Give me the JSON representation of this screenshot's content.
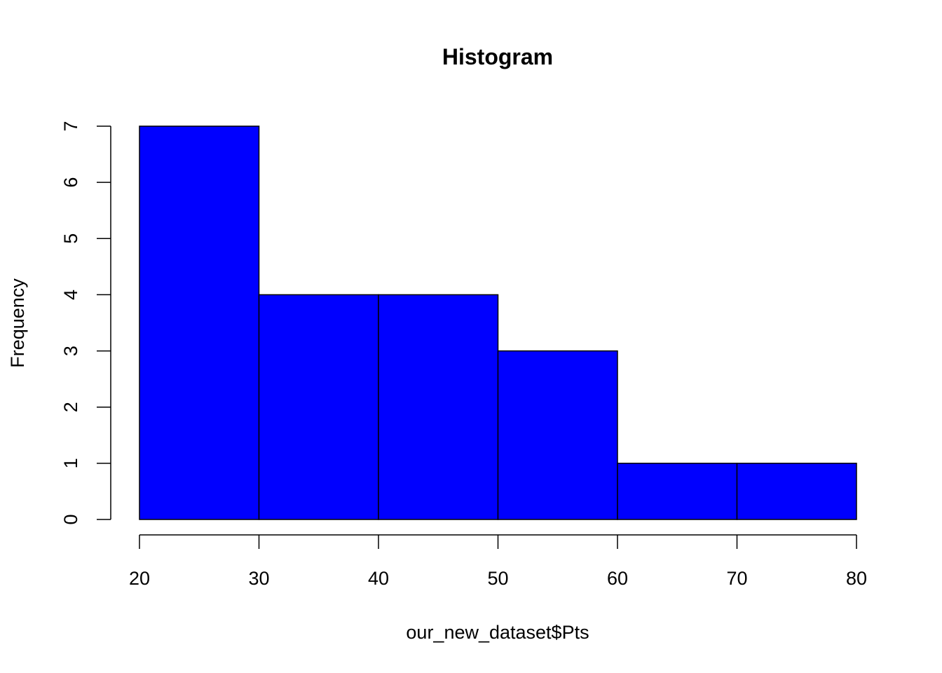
{
  "chart_data": {
    "type": "bar",
    "subtype": "histogram",
    "title": "Histogram",
    "xlabel": "our_new_dataset$Pts",
    "ylabel": "Frequency",
    "bins": [
      [
        20,
        30
      ],
      [
        30,
        40
      ],
      [
        40,
        50
      ],
      [
        50,
        60
      ],
      [
        60,
        70
      ],
      [
        70,
        80
      ]
    ],
    "values": [
      7,
      4,
      4,
      3,
      1,
      1
    ],
    "xlim": [
      20,
      80
    ],
    "ylim": [
      0,
      7
    ],
    "xticks": [
      20,
      30,
      40,
      50,
      60,
      70,
      80
    ],
    "yticks": [
      0,
      1,
      2,
      3,
      4,
      5,
      6,
      7
    ],
    "bar_color": "#0000FF",
    "edge_color": "#000000",
    "grid": false
  }
}
